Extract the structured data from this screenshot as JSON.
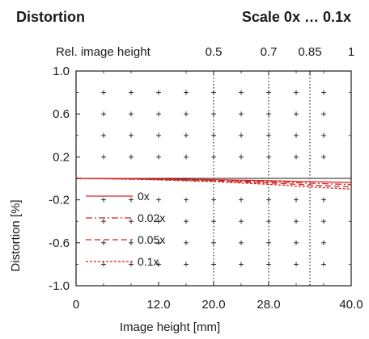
{
  "header": {
    "title": "Distortion",
    "scale": "Scale 0x … 0.1x"
  },
  "chart_data": {
    "type": "line",
    "title": "Distortion",
    "subtitle": "Scale 0x … 0.1x",
    "xlabel": "Image height [mm]",
    "ylabel": "Distortion [%]",
    "top_xlabel": "Rel. image height",
    "xlim": [
      0,
      40
    ],
    "ylim": [
      -1.0,
      1.0
    ],
    "x_ticks": [
      {
        "value": 0,
        "label": "0"
      },
      {
        "value": 12,
        "label": "12.0"
      },
      {
        "value": 20,
        "label": "20.0"
      },
      {
        "value": 28,
        "label": "28.0"
      },
      {
        "value": 40,
        "label": "40.0"
      }
    ],
    "y_ticks": [
      {
        "value": 1.0,
        "label": "1.0"
      },
      {
        "value": 0.6,
        "label": "0.6"
      },
      {
        "value": 0.2,
        "label": "0.2"
      },
      {
        "value": -0.2,
        "label": "-0.2"
      },
      {
        "value": -0.6,
        "label": "-0.6"
      },
      {
        "value": -1.0,
        "label": "-1.0"
      }
    ],
    "top_ticks": [
      {
        "value": 0.5,
        "label": "0.5"
      },
      {
        "value": 0.7,
        "label": "0.7"
      },
      {
        "value": 0.85,
        "label": "0.85"
      },
      {
        "value": 1.0,
        "label": "1"
      }
    ],
    "reference_lines_x": [
      20,
      28,
      34
    ],
    "grid": "crosses",
    "legend": "bottom-left",
    "series": [
      {
        "name": "0x",
        "style": "solid",
        "color": "#d42020",
        "x": [
          0,
          10,
          20,
          28,
          34,
          40
        ],
        "y": [
          0,
          -0.004,
          -0.012,
          -0.022,
          -0.03,
          -0.038
        ]
      },
      {
        "name": "0.02x",
        "style": "dashdot",
        "color": "#d42020",
        "x": [
          0,
          10,
          20,
          28,
          34,
          40
        ],
        "y": [
          0,
          -0.006,
          -0.018,
          -0.032,
          -0.045,
          -0.058
        ]
      },
      {
        "name": "0.05x",
        "style": "dashed",
        "color": "#d42020",
        "x": [
          0,
          10,
          20,
          28,
          34,
          40
        ],
        "y": [
          0,
          -0.008,
          -0.024,
          -0.042,
          -0.062,
          -0.08
        ]
      },
      {
        "name": "0.1x",
        "style": "dotted",
        "color": "#d42020",
        "x": [
          0,
          10,
          20,
          28,
          34,
          40
        ],
        "y": [
          0,
          -0.01,
          -0.03,
          -0.055,
          -0.08,
          -0.1
        ]
      }
    ]
  }
}
